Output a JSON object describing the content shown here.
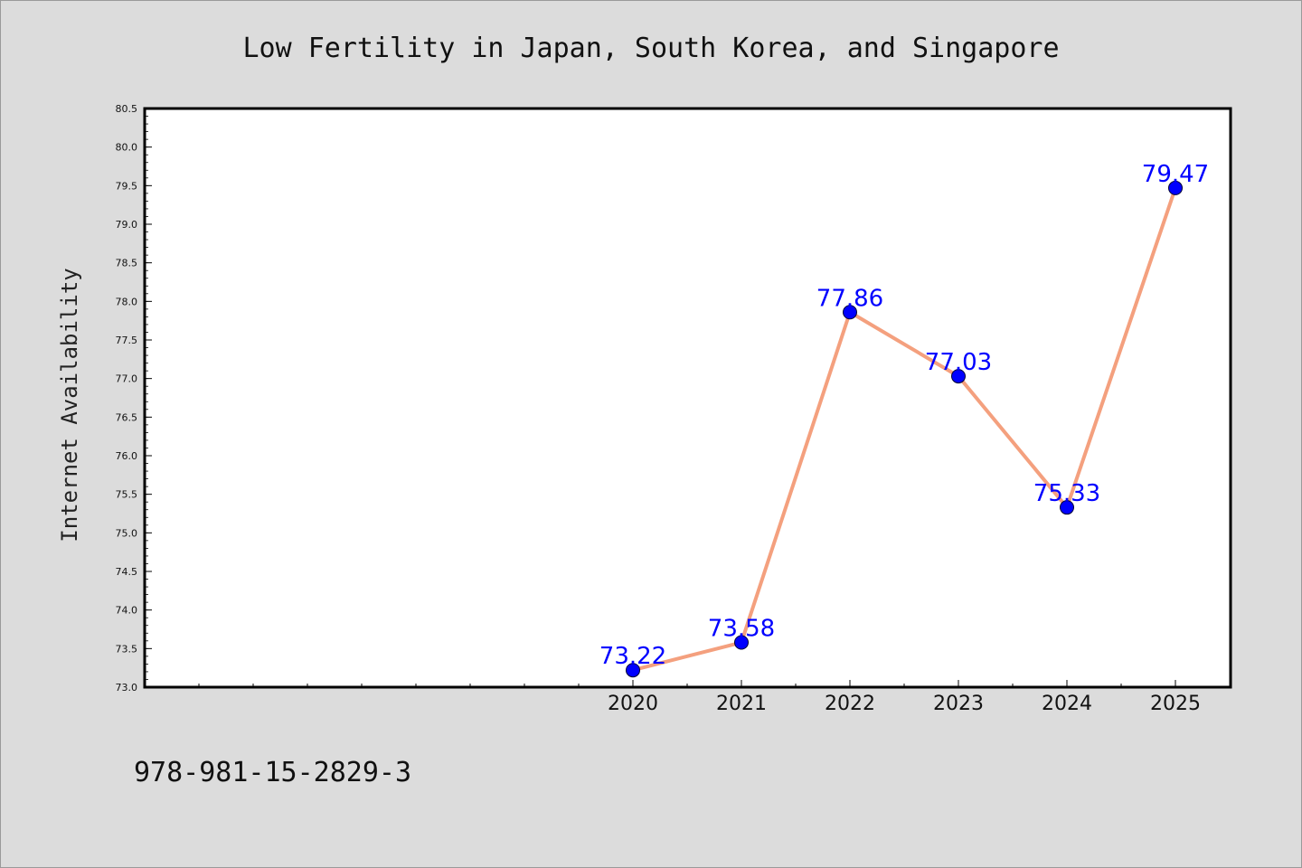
{
  "chart_data": {
    "type": "line",
    "title": "Low Fertility in Japan, South Korea, and Singapore",
    "xlabel": "",
    "ylabel": "Internet Availability",
    "x": [
      "2020",
      "2021",
      "2022",
      "2023",
      "2024",
      "2025"
    ],
    "series": [
      {
        "values": [
          73.22,
          73.58,
          77.86,
          77.03,
          75.33,
          79.47
        ]
      }
    ],
    "data_labels": [
      "73.22",
      "73.58",
      "77.86",
      "77.03",
      "75.33",
      "79.47"
    ],
    "ylim": [
      73.0,
      80.5
    ],
    "y_ticks": [
      "73.0",
      "73.5",
      "74.0",
      "74.5",
      "75.0",
      "75.5",
      "76.0",
      "76.5",
      "77.0",
      "77.5",
      "78.0",
      "78.5",
      "79.0",
      "79.5",
      "80.0",
      "80.5"
    ],
    "grid": false,
    "legend": "none",
    "colors": {
      "line": "#f4a07e",
      "marker": "#0000ff",
      "data_label": "#0000ff",
      "background": "#dcdcdc",
      "plot_area": "#ffffff"
    }
  },
  "footnote": "978-981-15-2829-3"
}
